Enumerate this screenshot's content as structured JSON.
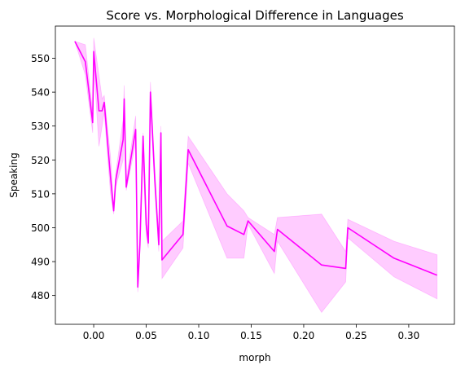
{
  "chart_data": {
    "type": "line",
    "title": "Score vs. Morphological Difference in Languages",
    "xlabel": "morph",
    "ylabel": "Speaking",
    "xlim": [
      -0.0365,
      0.3435
    ],
    "ylim": [
      471.5,
      559.5
    ],
    "xticks": [
      0.0,
      0.05,
      0.1,
      0.15,
      0.2,
      0.25,
      0.3
    ],
    "xtick_labels": [
      "0.00",
      "0.05",
      "0.10",
      "0.15",
      "0.20",
      "0.25",
      "0.30"
    ],
    "yticks": [
      480,
      490,
      500,
      510,
      520,
      530,
      540,
      550
    ],
    "ytick_labels": [
      "480",
      "490",
      "500",
      "510",
      "520",
      "530",
      "540",
      "550"
    ],
    "grid": false,
    "line_color": "#ff00ff",
    "band_color": "#ff00ff",
    "band_opacity": 0.2,
    "series": [
      {
        "points": [
          {
            "x": -0.018,
            "y": 555.0,
            "lo": 555.0,
            "hi": 555.0
          },
          {
            "x": -0.008,
            "y": 549.0,
            "lo": 545.0,
            "hi": 554.0
          },
          {
            "x": -0.001,
            "y": 531.0,
            "lo": 528.0,
            "hi": 534.0
          },
          {
            "x": 0.0,
            "y": 552.0,
            "lo": 548.0,
            "hi": 556.0
          },
          {
            "x": 0.005,
            "y": 534.5,
            "lo": 524.0,
            "hi": 545.0
          },
          {
            "x": 0.008,
            "y": 534.5,
            "lo": 530.0,
            "hi": 538.0
          },
          {
            "x": 0.01,
            "y": 537.0,
            "lo": 534.0,
            "hi": 539.0
          },
          {
            "x": 0.016,
            "y": 515.0,
            "lo": 510.0,
            "hi": 521.0
          },
          {
            "x": 0.019,
            "y": 505.0,
            "lo": 504.0,
            "hi": 506.0
          },
          {
            "x": 0.021,
            "y": 514.0,
            "lo": 512.0,
            "hi": 516.0
          },
          {
            "x": 0.028,
            "y": 526.0,
            "lo": 520.0,
            "hi": 532.0
          },
          {
            "x": 0.029,
            "y": 538.0,
            "lo": 533.0,
            "hi": 542.0
          },
          {
            "x": 0.031,
            "y": 512.0,
            "lo": 511.0,
            "hi": 514.0
          },
          {
            "x": 0.04,
            "y": 529.0,
            "lo": 525.0,
            "hi": 533.0
          },
          {
            "x": 0.042,
            "y": 482.5,
            "lo": 481.0,
            "hi": 484.0
          },
          {
            "x": 0.044,
            "y": 495.0,
            "lo": 494.0,
            "hi": 496.0
          },
          {
            "x": 0.047,
            "y": 527.0,
            "lo": 520.0,
            "hi": 528.0
          },
          {
            "x": 0.05,
            "y": 501.0,
            "lo": 498.0,
            "hi": 505.0
          },
          {
            "x": 0.052,
            "y": 495.5,
            "lo": 494.0,
            "hi": 497.0
          },
          {
            "x": 0.054,
            "y": 540.0,
            "lo": 536.0,
            "hi": 543.0
          },
          {
            "x": 0.058,
            "y": 515.0,
            "lo": 512.0,
            "hi": 518.0
          },
          {
            "x": 0.062,
            "y": 495.0,
            "lo": 493.0,
            "hi": 497.0
          },
          {
            "x": 0.064,
            "y": 528.0,
            "lo": 526.0,
            "hi": 530.0
          },
          {
            "x": 0.065,
            "y": 490.5,
            "lo": 485.0,
            "hi": 496.0
          },
          {
            "x": 0.085,
            "y": 498.0,
            "lo": 494.0,
            "hi": 502.0
          },
          {
            "x": 0.09,
            "y": 523.0,
            "lo": 519.0,
            "hi": 527.0
          },
          {
            "x": 0.127,
            "y": 500.5,
            "lo": 491.0,
            "hi": 510.0
          },
          {
            "x": 0.143,
            "y": 498.0,
            "lo": 491.0,
            "hi": 505.0
          },
          {
            "x": 0.147,
            "y": 502.0,
            "lo": 501.0,
            "hi": 503.0
          },
          {
            "x": 0.172,
            "y": 493.0,
            "lo": 486.5,
            "hi": 498.0
          },
          {
            "x": 0.175,
            "y": 499.5,
            "lo": 496.0,
            "hi": 503.0
          },
          {
            "x": 0.217,
            "y": 489.0,
            "lo": 475.0,
            "hi": 504.0
          },
          {
            "x": 0.24,
            "y": 488.0,
            "lo": 484.0,
            "hi": 493.0
          },
          {
            "x": 0.242,
            "y": 500.0,
            "lo": 497.0,
            "hi": 502.5
          },
          {
            "x": 0.286,
            "y": 491.0,
            "lo": 485.5,
            "hi": 496.0
          },
          {
            "x": 0.327,
            "y": 486.0,
            "lo": 479.0,
            "hi": 492.0
          }
        ]
      }
    ]
  }
}
